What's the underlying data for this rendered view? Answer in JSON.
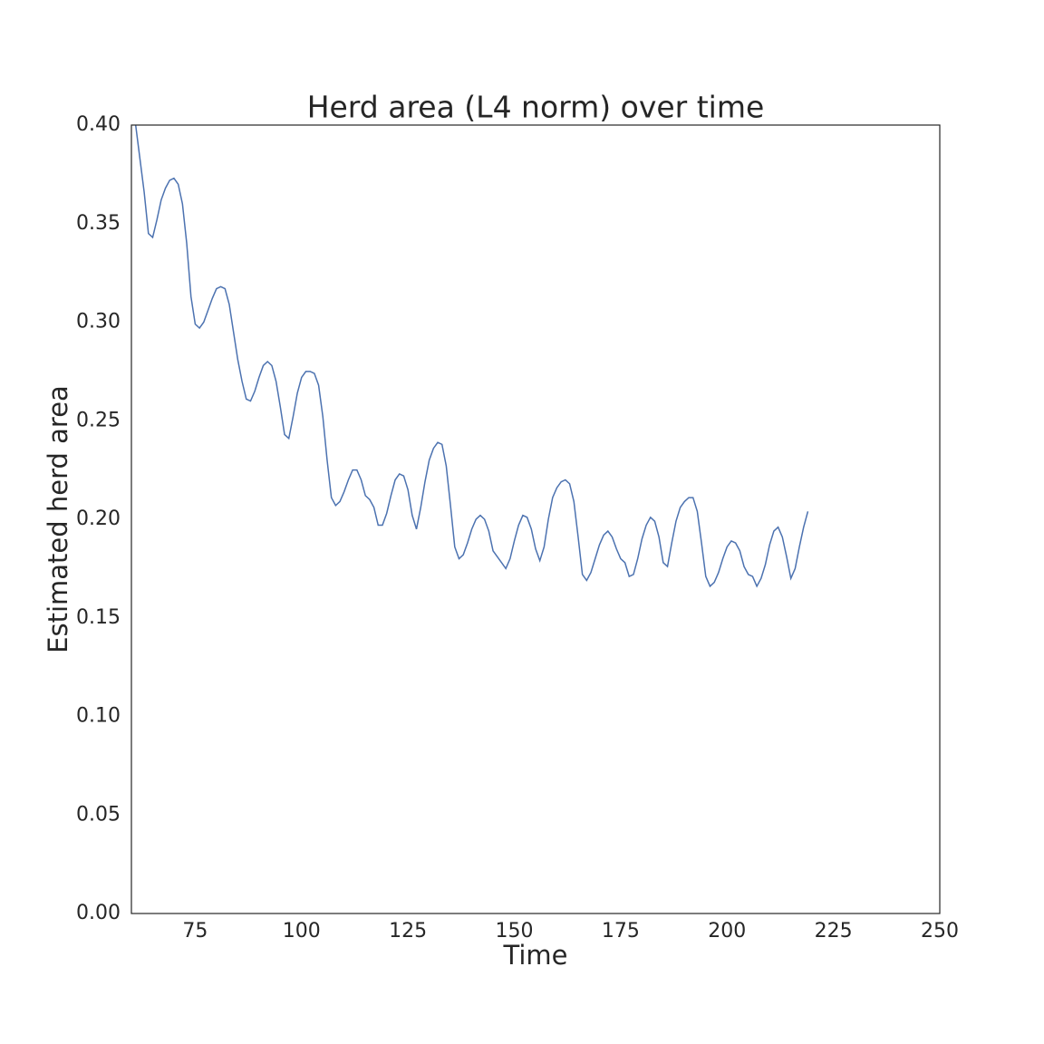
{
  "chart_data": {
    "type": "line",
    "title": "Herd area (L4 norm) over time",
    "x_label": "Time",
    "y_label": "Estimated herd area",
    "x": [
      61,
      62,
      63,
      64,
      65,
      66,
      67,
      68,
      69,
      70,
      71,
      72,
      73,
      74,
      75,
      76,
      77,
      78,
      79,
      80,
      81,
      82,
      83,
      84,
      85,
      86,
      87,
      88,
      89,
      90,
      91,
      92,
      93,
      94,
      95,
      96,
      97,
      98,
      99,
      100,
      101,
      102,
      103,
      104,
      105,
      106,
      107,
      108,
      109,
      110,
      111,
      112,
      113,
      114,
      115,
      116,
      117,
      118,
      119,
      120,
      121,
      122,
      123,
      124,
      125,
      126,
      127,
      128,
      129,
      130,
      131,
      132,
      133,
      134,
      135,
      136,
      137,
      138,
      139,
      140,
      141,
      142,
      143,
      144,
      145,
      146,
      147,
      148,
      149,
      150,
      151,
      152,
      153,
      154,
      155,
      156,
      157,
      158,
      159,
      160,
      161,
      162,
      163,
      164,
      165,
      166,
      167,
      168,
      169,
      170,
      171,
      172,
      173,
      174,
      175,
      176,
      177,
      178,
      179,
      180,
      181,
      182,
      183,
      184,
      185,
      186,
      187,
      188,
      189,
      190,
      191,
      192,
      193,
      194,
      195,
      196,
      197,
      198,
      199,
      200,
      201,
      202,
      203,
      204,
      205,
      206,
      207,
      208,
      209,
      210,
      211,
      212,
      213,
      214,
      215,
      216,
      217,
      218,
      219
    ],
    "series": [
      {
        "color": "#4c72b0",
        "values": [
          0.4,
          0.383,
          0.366,
          0.345,
          0.343,
          0.352,
          0.362,
          0.368,
          0.372,
          0.373,
          0.37,
          0.36,
          0.34,
          0.313,
          0.299,
          0.297,
          0.3,
          0.306,
          0.312,
          0.317,
          0.318,
          0.317,
          0.309,
          0.295,
          0.281,
          0.27,
          0.261,
          0.26,
          0.265,
          0.272,
          0.278,
          0.28,
          0.278,
          0.27,
          0.257,
          0.243,
          0.241,
          0.252,
          0.264,
          0.272,
          0.275,
          0.275,
          0.274,
          0.268,
          0.252,
          0.23,
          0.211,
          0.207,
          0.209,
          0.214,
          0.22,
          0.225,
          0.225,
          0.22,
          0.212,
          0.21,
          0.206,
          0.197,
          0.197,
          0.203,
          0.212,
          0.22,
          0.223,
          0.222,
          0.215,
          0.202,
          0.195,
          0.206,
          0.219,
          0.23,
          0.236,
          0.239,
          0.238,
          0.227,
          0.207,
          0.186,
          0.18,
          0.182,
          0.188,
          0.195,
          0.2,
          0.202,
          0.2,
          0.194,
          0.184,
          0.181,
          0.178,
          0.175,
          0.18,
          0.189,
          0.197,
          0.202,
          0.201,
          0.195,
          0.185,
          0.179,
          0.186,
          0.2,
          0.211,
          0.216,
          0.219,
          0.22,
          0.218,
          0.209,
          0.191,
          0.172,
          0.169,
          0.173,
          0.18,
          0.187,
          0.192,
          0.194,
          0.191,
          0.185,
          0.18,
          0.178,
          0.171,
          0.172,
          0.18,
          0.19,
          0.197,
          0.201,
          0.199,
          0.191,
          0.178,
          0.176,
          0.188,
          0.199,
          0.206,
          0.209,
          0.211,
          0.211,
          0.204,
          0.188,
          0.171,
          0.166,
          0.168,
          0.173,
          0.18,
          0.186,
          0.189,
          0.188,
          0.184,
          0.176,
          0.172,
          0.171,
          0.166,
          0.17,
          0.177,
          0.187,
          0.194,
          0.196,
          0.191,
          0.181,
          0.17,
          0.175,
          0.186,
          0.196,
          0.204
        ]
      }
    ],
    "xlim": [
      60,
      250
    ],
    "xticks": [
      75,
      100,
      125,
      150,
      175,
      200,
      225,
      250
    ],
    "ylim": [
      0,
      0.4
    ],
    "yticks": [
      {
        "value": 0,
        "label": "0.00"
      },
      0.05,
      {
        "value": 0.1,
        "label": "0.10"
      },
      0.15,
      {
        "value": 0.2,
        "label": "0.20"
      },
      0.25,
      {
        "value": 0.3,
        "label": "0.30"
      },
      0.35,
      {
        "value": 0.4,
        "label": "0.40"
      }
    ],
    "grid": false
  }
}
